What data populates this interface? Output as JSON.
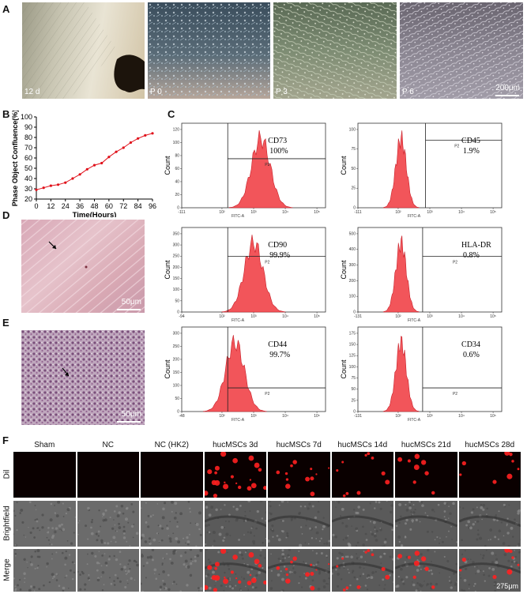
{
  "panels": {
    "A": "A",
    "B": "B",
    "C": "C",
    "D": "D",
    "E": "E",
    "F": "F"
  },
  "panel_a": {
    "labels": [
      "12 d",
      "P 0",
      "P 3",
      "P 6"
    ],
    "scale": "200μm"
  },
  "panel_d": {
    "scale": "50μm"
  },
  "panel_e": {
    "scale": "50μm"
  },
  "chart_data": {
    "type": "line",
    "xlabel": "Time(Hours)",
    "ylabel": "Phase Object Confluence(%)",
    "xticks": [
      0,
      12,
      24,
      36,
      48,
      60,
      72,
      84,
      96
    ],
    "yticks": [
      20,
      30,
      40,
      50,
      60,
      70,
      80,
      90,
      100
    ],
    "xlim": [
      0,
      96
    ],
    "ylim": [
      20,
      100
    ],
    "x": [
      0,
      6,
      12,
      18,
      24,
      30,
      36,
      42,
      48,
      54,
      60,
      66,
      72,
      78,
      84,
      90,
      96
    ],
    "y": [
      29,
      31,
      33,
      34,
      36,
      40,
      44,
      49,
      53,
      55,
      61,
      66,
      70,
      75,
      79,
      82,
      84
    ],
    "color": "#e0101a"
  },
  "flow": [
    {
      "marker": "CD73",
      "pct": "100%",
      "gate": "P2",
      "xaxis": "FITC-A",
      "ylabel": "Count"
    },
    {
      "marker": "CD45",
      "pct": "1.9%",
      "gate": "P2",
      "xaxis": "FITC-A",
      "ylabel": "Count"
    },
    {
      "marker": "CD90",
      "pct": "99.9%",
      "gate": "P2",
      "xaxis": "FITC-A",
      "ylabel": "Count"
    },
    {
      "marker": "HLA-DR",
      "pct": "0.8%",
      "gate": "P2",
      "xaxis": "FITC-A",
      "ylabel": "Count"
    },
    {
      "marker": "CD44",
      "pct": "99.7%",
      "gate": "P2",
      "xaxis": "FITC-A",
      "ylabel": "Count"
    },
    {
      "marker": "CD34",
      "pct": "0.6%",
      "gate": "P2",
      "xaxis": "FITC-A",
      "ylabel": "Count"
    }
  ],
  "flow_color": "#f2555a",
  "panel_f": {
    "columns": [
      "Sham",
      "NC",
      "NC (HK2)",
      "hucMSCs 3d",
      "hucMSCs 7d",
      "hucMSCs 14d",
      "hucMSCs 21d",
      "hucMSCs 28d"
    ],
    "rows": [
      "Dil",
      "Brightfield",
      "Merge"
    ],
    "scale": "275μm"
  }
}
